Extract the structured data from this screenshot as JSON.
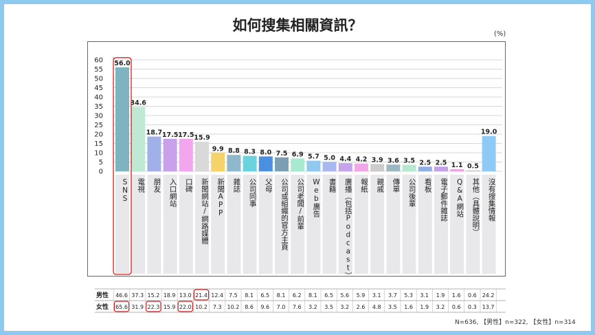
{
  "page": {
    "title": "如何搜集相關資訊？",
    "unit": "(%)",
    "note": "N=636, 【男性】n=322, 【女性】n=314"
  },
  "colors": {
    "background": "#8ec9ef",
    "highlight": "#d62020",
    "label_bg": "#e8e8ea",
    "gridline": "#c8c8c8"
  },
  "chart_data": {
    "type": "bar",
    "ylim": [
      0,
      60
    ],
    "yticks": [
      0,
      5,
      10,
      15,
      20,
      25,
      30,
      35,
      40,
      45,
      50,
      55,
      60
    ],
    "categories": [
      "SNS",
      "電視",
      "朋友",
      "入口網站",
      "口碑",
      "新聞網站/網路媒體",
      "新聞APP",
      "雜誌",
      "公司同事",
      "父母",
      "公司或組織的官方主頁",
      "公司老闆/前輩",
      "Web廣告",
      "書籍",
      "廣播（包括Podcast）",
      "報紙",
      "親戚",
      "傳單",
      "公司後輩",
      "看板",
      "電子郵件雜誌",
      "Q&A網站",
      "其他（具體說明）",
      "沒有搜集情報"
    ],
    "values": [
      56.0,
      34.6,
      18.7,
      17.5,
      17.5,
      15.9,
      9.9,
      8.8,
      8.3,
      8.0,
      7.5,
      6.9,
      5.7,
      5.0,
      4.4,
      4.2,
      3.9,
      3.6,
      3.5,
      2.5,
      2.5,
      1.1,
      0.5,
      19.0
    ],
    "value_labels": [
      "56.0",
      "34.6",
      "18.7",
      "17.5",
      "17.5",
      "15.9",
      "9.9",
      "8.8",
      "8.3",
      "8.0",
      "7.5",
      "6.9",
      "5.7",
      "5.0",
      "4.4",
      "4.2",
      "3.9",
      "3.6",
      "3.5",
      "2.5",
      "2.5",
      "1.1",
      "0.5",
      "19.0"
    ],
    "bar_colors": [
      "#7fb3bf",
      "#bfe9d2",
      "#9fb1e8",
      "#c9a0ea",
      "#f2a6ee",
      "#d9d9d9",
      "#f5d36a",
      "#8fb8cc",
      "#6ad3dd",
      "#4a8fe0",
      "#7c9fb4",
      "#a8ead0",
      "#8fc9ee",
      "#a9b9ef",
      "#c7a3ec",
      "#f0a8e9",
      "#cccccc",
      "#9ab8c2",
      "#b6e9d0",
      "#8fb0e6",
      "#c4a0e6",
      "#eda4e6",
      "#c9c9c9",
      "#8ecaf5"
    ],
    "highlighted_bars": [
      0
    ],
    "gridlines": true,
    "legend": "none"
  },
  "table": {
    "rows": [
      {
        "label": "男性",
        "values": [
          "46.6",
          "37.3",
          "15.2",
          "18.9",
          "13.0",
          "21.4",
          "12.4",
          "7.5",
          "8.1",
          "6.5",
          "8.1",
          "6.2",
          "8.1",
          "6.5",
          "5.6",
          "5.9",
          "3.1",
          "3.7",
          "5.3",
          "3.1",
          "1.9",
          "1.6",
          "0.6",
          "24.2"
        ],
        "highlighted": [
          5
        ]
      },
      {
        "label": "女性",
        "values": [
          "65.6",
          "31.9",
          "22.3",
          "15.9",
          "22.0",
          "10.2",
          "7.3",
          "10.2",
          "8.6",
          "9.6",
          "7.0",
          "7.6",
          "3.2",
          "3.5",
          "3.2",
          "2.6",
          "4.8",
          "3.5",
          "1.6",
          "1.9",
          "3.2",
          "0.6",
          "0.3",
          "13.7"
        ],
        "highlighted": [
          0,
          2,
          4
        ]
      }
    ]
  }
}
